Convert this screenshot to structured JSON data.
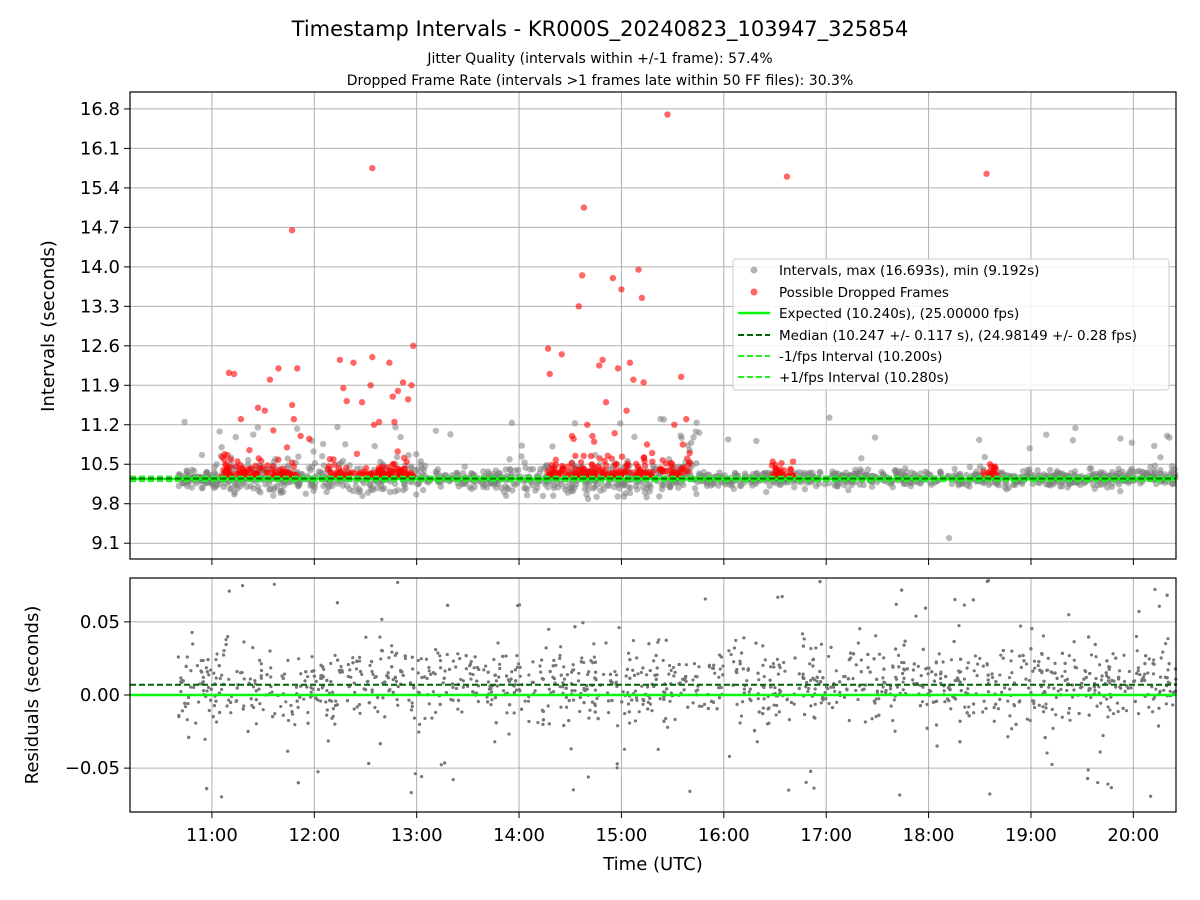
{
  "figure": {
    "title": "Timestamp Intervals - KR000S_20240823_103947_325854",
    "subtitle1": "Jitter Quality (intervals within +/-1 frame): 57.4%",
    "subtitle2": "Dropped Frame Rate (intervals >1 frames late within 50 FF files): 30.3%"
  },
  "colors": {
    "intervals": "#808080",
    "dropped": "#ff0000",
    "expected": "#00ff00",
    "median": "#006400",
    "fps_bounds": "#22ee22",
    "grid": "#b0b0b0"
  },
  "chart_data": [
    {
      "type": "scatter",
      "name": "top",
      "ylabel": "Intervals (seconds)",
      "xlabel": "",
      "xlim": [
        "10:12",
        "20:25"
      ],
      "ylim": [
        8.82,
        17.1
      ],
      "yticks": [
        "9.1",
        "9.8",
        "10.5",
        "11.2",
        "11.9",
        "12.6",
        "13.3",
        "14.0",
        "14.7",
        "15.4",
        "16.1",
        "16.8"
      ],
      "xticks": [
        "11:00",
        "12:00",
        "13:00",
        "14:00",
        "15:00",
        "16:00",
        "17:00",
        "18:00",
        "19:00",
        "20:00"
      ],
      "grid": true,
      "legend_position": "center-right",
      "legend": [
        "Intervals, max (16.693s), min (9.192s)",
        "Possible Dropped Frames",
        "Expected (10.240s), (25.00000 fps)",
        "Median (10.247 +/- 0.117 s), (24.98149 +/- 0.28 fps)",
        "-1/fps Interval (10.200s)",
        "+1/fps Interval (10.280s)"
      ],
      "lines": {
        "expected": 10.24,
        "median": 10.247,
        "minus_fps": 10.2,
        "plus_fps": 10.28
      },
      "x_range_points": [
        "10:40",
        "20:25"
      ],
      "interval_extremes": {
        "max": 16.693,
        "min": 9.192
      },
      "dropped_frames_points": [
        [
          "11:10",
          12.12
        ],
        [
          "11:13",
          12.1
        ],
        [
          "11:15",
          10.55
        ],
        [
          "11:17",
          11.3
        ],
        [
          "11:22",
          10.75
        ],
        [
          "11:27",
          11.5
        ],
        [
          "11:31",
          11.45
        ],
        [
          "11:34",
          12.0
        ],
        [
          "11:36",
          11.1
        ],
        [
          "11:39",
          12.2
        ],
        [
          "11:44",
          10.8
        ],
        [
          "11:48",
          11.3
        ],
        [
          "11:50",
          12.2
        ],
        [
          "11:47",
          11.55
        ],
        [
          "11:52",
          11.0
        ],
        [
          "11:47",
          14.65
        ],
        [
          "11:57",
          10.95
        ],
        [
          "12:15",
          12.35
        ],
        [
          "12:17",
          11.85
        ],
        [
          "12:19",
          11.62
        ],
        [
          "12:23",
          12.3
        ],
        [
          "12:28",
          11.6
        ],
        [
          "12:34",
          12.4
        ],
        [
          "12:38",
          11.25
        ],
        [
          "12:44",
          12.3
        ],
        [
          "12:46",
          11.7
        ],
        [
          "12:49",
          11.8
        ],
        [
          "12:33",
          11.9
        ],
        [
          "12:35",
          11.2
        ],
        [
          "12:34",
          15.75
        ],
        [
          "12:47",
          11.25
        ],
        [
          "12:52",
          11.95
        ],
        [
          "12:55",
          11.65
        ],
        [
          "12:58",
          12.6
        ],
        [
          "12:57",
          11.9
        ],
        [
          "14:17",
          12.55
        ],
        [
          "14:18",
          12.1
        ],
        [
          "14:25",
          12.45
        ],
        [
          "14:31",
          11.0
        ],
        [
          "14:32",
          10.95
        ],
        [
          "14:35",
          13.3
        ],
        [
          "14:37",
          13.85
        ],
        [
          "14:38",
          15.05
        ],
        [
          "14:40",
          11.2
        ],
        [
          "14:43",
          11.0
        ],
        [
          "14:44",
          10.9
        ],
        [
          "14:47",
          12.25
        ],
        [
          "14:49",
          12.35
        ],
        [
          "14:51",
          11.6
        ],
        [
          "14:52",
          10.65
        ],
        [
          "14:56",
          11.05
        ],
        [
          "14:55",
          13.8
        ],
        [
          "14:58",
          12.2
        ],
        [
          "15:00",
          13.6
        ],
        [
          "15:03",
          11.45
        ],
        [
          "15:05",
          12.3
        ],
        [
          "15:07",
          12.0
        ],
        [
          "15:10",
          13.95
        ],
        [
          "15:12",
          13.45
        ],
        [
          "15:13",
          11.95
        ],
        [
          "15:15",
          10.85
        ],
        [
          "15:18",
          10.7
        ],
        [
          "15:27",
          16.7
        ],
        [
          "15:31",
          11.2
        ],
        [
          "15:36",
          10.85
        ],
        [
          "15:35",
          12.05
        ],
        [
          "15:38",
          11.3
        ],
        [
          "15:40",
          10.7
        ],
        [
          "16:37",
          15.6
        ],
        [
          "16:38",
          10.3
        ],
        [
          "18:34",
          15.65
        ],
        [
          "18:36",
          10.5
        ]
      ],
      "dropped_frames_clusters": [
        [
          "11:05",
          "11:50",
          10.4
        ],
        [
          "12:08",
          "12:58",
          10.4
        ],
        [
          "14:16",
          "15:40",
          10.4
        ],
        [
          "16:28",
          "16:42",
          10.32
        ],
        [
          "18:32",
          "18:40",
          10.4
        ]
      ]
    },
    {
      "type": "scatter",
      "name": "residuals",
      "ylabel": "Residuals (seconds)",
      "xlabel": "Time (UTC)",
      "xlim": [
        "10:12",
        "20:25"
      ],
      "ylim": [
        -0.08,
        0.08
      ],
      "yticks": [
        "−0.05",
        "0.00",
        "0.05"
      ],
      "xticks": [
        "11:00",
        "12:00",
        "13:00",
        "14:00",
        "15:00",
        "16:00",
        "17:00",
        "18:00",
        "19:00",
        "20:00"
      ],
      "grid": true,
      "lines": {
        "zero": 0.0,
        "median_offset": 0.007
      }
    }
  ]
}
